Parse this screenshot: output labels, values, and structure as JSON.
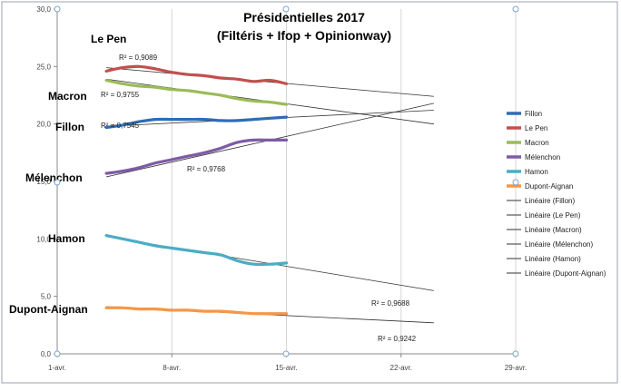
{
  "chart_data": {
    "type": "line",
    "title_line1": "Présidentielles 2017",
    "title_line2": "(Filtéris + Ifop + Opinionway)",
    "x_ticks": [
      "1-avr.",
      "8-avr.",
      "15-avr.",
      "22-avr.",
      "29-avr."
    ],
    "xlim": [
      0,
      28
    ],
    "ylim": [
      0,
      30
    ],
    "y_ticks": [
      "0,0",
      "5,0",
      "10,0",
      "15,0",
      "20,0",
      "25,0",
      "30,0"
    ],
    "grid": {
      "vertical": true,
      "horizontal": false
    },
    "legend_position": "right",
    "series": [
      {
        "name": "Fillon",
        "color": "#2e6db5",
        "label": "Fillon",
        "x": [
          3,
          4,
          5,
          6,
          7,
          8,
          9,
          10,
          11,
          12,
          13,
          14
        ],
        "y": [
          19.7,
          19.9,
          20.2,
          20.4,
          20.4,
          20.4,
          20.4,
          20.3,
          20.3,
          20.4,
          20.5,
          20.6
        ],
        "trend": {
          "x": [
            3,
            23
          ],
          "y": [
            19.8,
            21.2
          ]
        },
        "r2": "R² = 0,7545"
      },
      {
        "name": "Le Pen",
        "color": "#c0504d",
        "label": "Le Pen",
        "x": [
          3,
          4,
          5,
          6,
          7,
          8,
          9,
          10,
          11,
          12,
          13,
          14
        ],
        "y": [
          24.6,
          24.9,
          25.0,
          24.8,
          24.5,
          24.3,
          24.2,
          24.0,
          23.9,
          23.7,
          23.8,
          23.5
        ],
        "trend": {
          "x": [
            3,
            23
          ],
          "y": [
            24.9,
            22.4
          ]
        },
        "r2": "R² = 0,9089"
      },
      {
        "name": "Macron",
        "color": "#9bbb59",
        "label": "Macron",
        "x": [
          3,
          4,
          5,
          6,
          7,
          8,
          9,
          10,
          11,
          12,
          13,
          14
        ],
        "y": [
          23.8,
          23.5,
          23.3,
          23.2,
          23.0,
          22.9,
          22.7,
          22.5,
          22.2,
          22.0,
          21.9,
          21.7
        ],
        "trend": {
          "x": [
            3,
            23
          ],
          "y": [
            23.9,
            20.0
          ]
        },
        "r2": "R² = 0,9755"
      },
      {
        "name": "Mélenchon",
        "color": "#7d5ba6",
        "label": "Mélenchon",
        "x": [
          3,
          4,
          5,
          6,
          7,
          8,
          9,
          10,
          11,
          12,
          13,
          14
        ],
        "y": [
          15.7,
          15.9,
          16.2,
          16.6,
          16.9,
          17.2,
          17.5,
          17.9,
          18.4,
          18.6,
          18.6,
          18.6
        ],
        "trend": {
          "x": [
            3,
            23
          ],
          "y": [
            15.4,
            21.8
          ]
        },
        "r2": "R² = 0,9768"
      },
      {
        "name": "Hamon",
        "color": "#4bacc6",
        "label": "Hamon",
        "x": [
          3,
          4,
          5,
          6,
          7,
          8,
          9,
          10,
          11,
          12,
          13,
          14
        ],
        "y": [
          10.3,
          10.0,
          9.7,
          9.4,
          9.2,
          9.0,
          8.8,
          8.6,
          8.1,
          7.8,
          7.8,
          7.9
        ],
        "trend": {
          "x": [
            3,
            23
          ],
          "y": [
            10.2,
            5.5
          ]
        },
        "r2": "R² = 0,9688"
      },
      {
        "name": "Dupont-Aignan",
        "color": "#f79646",
        "label": "Dupont-Aignan",
        "x": [
          3,
          4,
          5,
          6,
          7,
          8,
          9,
          10,
          11,
          12,
          13,
          14
        ],
        "y": [
          4.0,
          4.0,
          3.9,
          3.9,
          3.8,
          3.8,
          3.7,
          3.7,
          3.6,
          3.5,
          3.5,
          3.5
        ],
        "trend": {
          "x": [
            3,
            23
          ],
          "y": [
            4.1,
            2.7
          ]
        },
        "r2": "R² = 0,9242"
      }
    ],
    "trend_legend": [
      "Linéaire (Fillon)",
      "Linéaire (Le Pen)",
      "Linéaire (Macron)",
      "Linéaire (Mélenchon)",
      "Linéaire (Hamon)",
      "Linéaire (Dupont-Aignan)"
    ]
  }
}
